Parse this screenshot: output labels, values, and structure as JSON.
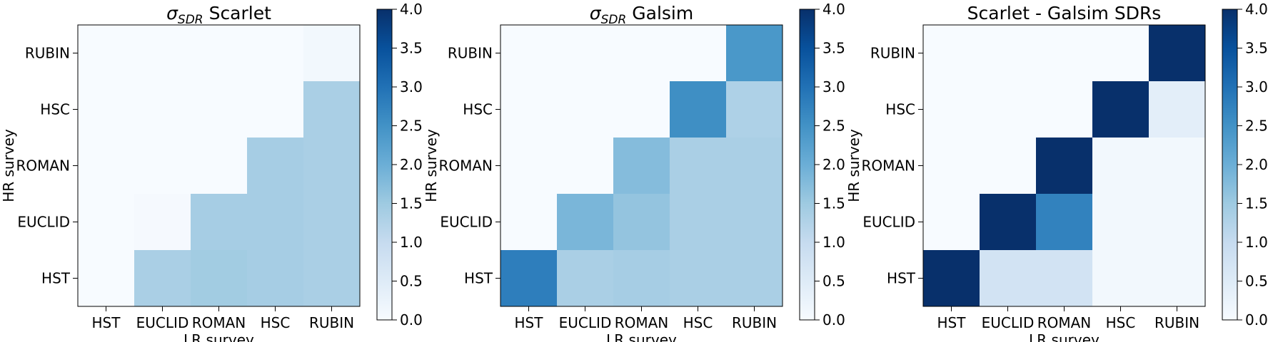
{
  "colors": {
    "cmap": [
      "#f7fbff",
      "#deebf7",
      "#c6dbef",
      "#9ecae1",
      "#6baed6",
      "#4292c6",
      "#2171b5",
      "#08519c",
      "#08306b"
    ]
  },
  "chart_data": [
    {
      "type": "heatmap",
      "title_math": "σ",
      "title_sub": "SDR",
      "title_rest": " Scarlet",
      "xlabel": "LR survey",
      "ylabel": "HR survey",
      "x_categories": [
        "HST",
        "EUCLID",
        "ROMAN",
        "HSC",
        "RUBIN"
      ],
      "y_categories": [
        "RUBIN",
        "HSC",
        "ROMAN",
        "EUCLID",
        "HST"
      ],
      "values": [
        [
          0.0,
          0.0,
          0.0,
          0.0,
          0.1
        ],
        [
          0.0,
          0.0,
          0.0,
          0.0,
          1.35
        ],
        [
          0.0,
          0.0,
          0.0,
          1.4,
          1.35
        ],
        [
          0.0,
          0.05,
          1.4,
          1.4,
          1.35
        ],
        [
          0.0,
          1.35,
          1.45,
          1.4,
          1.35
        ]
      ],
      "colorbar": {
        "vmin": 0.0,
        "vmax": 4.0,
        "ticks": [
          "0.0",
          "0.5",
          "1.0",
          "1.5",
          "2.0",
          "2.5",
          "3.0",
          "3.5",
          "4.0"
        ]
      }
    },
    {
      "type": "heatmap",
      "title_math": "σ",
      "title_sub": "SDR",
      "title_rest": " Galsim",
      "xlabel": "LR survey",
      "ylabel": "HR survey",
      "x_categories": [
        "HST",
        "EUCLID",
        "ROMAN",
        "HSC",
        "RUBIN"
      ],
      "y_categories": [
        "RUBIN",
        "HSC",
        "ROMAN",
        "EUCLID",
        "HST"
      ],
      "values": [
        [
          0.0,
          0.0,
          0.0,
          0.0,
          2.4
        ],
        [
          0.0,
          0.0,
          0.0,
          2.55,
          1.3
        ],
        [
          0.0,
          0.0,
          1.75,
          1.35,
          1.35
        ],
        [
          0.0,
          1.85,
          1.6,
          1.35,
          1.35
        ],
        [
          2.8,
          1.35,
          1.4,
          1.35,
          1.35
        ]
      ],
      "colorbar": {
        "vmin": 0.0,
        "vmax": 4.0,
        "ticks": [
          "0.0",
          "0.5",
          "1.0",
          "1.5",
          "2.0",
          "2.5",
          "3.0",
          "3.5",
          "4.0"
        ]
      }
    },
    {
      "type": "heatmap",
      "title": "Scarlet - Galsim SDRs",
      "xlabel": "LR survey",
      "ylabel": "HR survey",
      "x_categories": [
        "HST",
        "EUCLID",
        "ROMAN",
        "HSC",
        "RUBIN"
      ],
      "y_categories": [
        "RUBIN",
        "HSC",
        "ROMAN",
        "EUCLID",
        "HST"
      ],
      "values": [
        [
          0.0,
          0.0,
          0.0,
          0.0,
          4.0
        ],
        [
          0.0,
          0.0,
          0.0,
          4.0,
          0.4
        ],
        [
          0.0,
          0.0,
          4.0,
          0.1,
          0.1
        ],
        [
          0.0,
          4.0,
          2.75,
          0.1,
          0.1
        ],
        [
          4.0,
          0.75,
          0.75,
          0.1,
          0.1
        ]
      ],
      "colorbar": {
        "vmin": 0.0,
        "vmax": 4.0,
        "ticks": [
          "0.0",
          "0.5",
          "1.0",
          "1.5",
          "2.0",
          "2.5",
          "3.0",
          "3.5",
          "4.0"
        ]
      }
    }
  ]
}
